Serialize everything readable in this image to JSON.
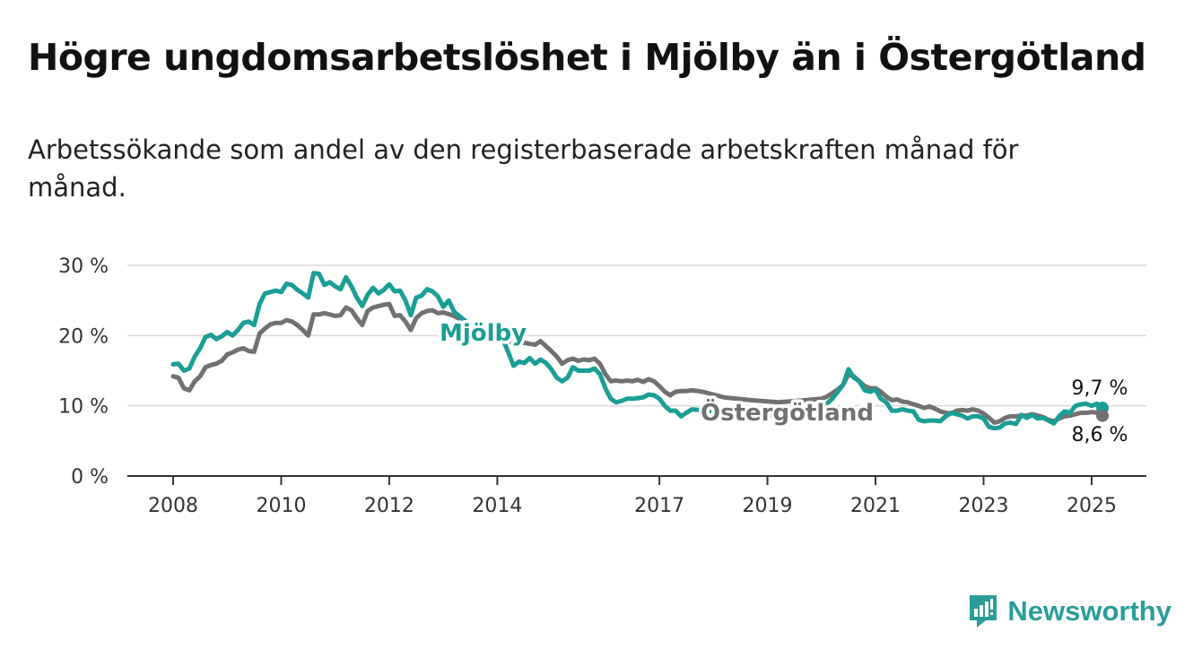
{
  "title": "Högre ungdomsarbetslöshet i Mjölby än i Östergötland",
  "subtitle": "Arbetssökande som andel av den registerbaserade arbetskraften månad för månad.",
  "logo": {
    "text": "Newsworthy",
    "icon": "newsworthy-logo-icon"
  },
  "colors": {
    "mjolby": "#1a9e95",
    "ostergotland": "#717171",
    "grid": "#d9d9d9",
    "axis": "#333333"
  },
  "chart_data": {
    "type": "line",
    "title": "Högre ungdomsarbetslöshet i Mjölby än i Östergötland",
    "subtitle": "Arbetssökande som andel av den registerbaserade arbetskraften månad för månad.",
    "y_ticks": [
      "0 %",
      "10 %",
      "20 %",
      "30 %"
    ],
    "ylim": [
      0,
      30
    ],
    "x_ticks": [
      "2008",
      "2010",
      "2012",
      "2014",
      "2017",
      "2019",
      "2021",
      "2023",
      "2025"
    ],
    "xlim": [
      2008,
      2025.2
    ],
    "grid": "horizontal",
    "series": [
      {
        "name": "Mjölby",
        "end_label": "9,7 %",
        "points": [
          [
            2008.0,
            15.9
          ],
          [
            2008.1,
            16.0
          ],
          [
            2008.2,
            15.0
          ],
          [
            2008.3,
            15.3
          ],
          [
            2008.4,
            17.0
          ],
          [
            2008.5,
            18.2
          ],
          [
            2008.6,
            19.8
          ],
          [
            2008.7,
            20.1
          ],
          [
            2008.8,
            19.5
          ],
          [
            2008.9,
            19.9
          ],
          [
            2009.0,
            20.5
          ],
          [
            2009.1,
            20.0
          ],
          [
            2009.2,
            20.8
          ],
          [
            2009.3,
            21.8
          ],
          [
            2009.4,
            22.0
          ],
          [
            2009.5,
            21.5
          ],
          [
            2009.6,
            24.5
          ],
          [
            2009.7,
            26.0
          ],
          [
            2009.8,
            26.2
          ],
          [
            2009.9,
            26.4
          ],
          [
            2010.0,
            26.2
          ],
          [
            2010.1,
            27.4
          ],
          [
            2010.2,
            27.2
          ],
          [
            2010.3,
            26.5
          ],
          [
            2010.4,
            26.0
          ],
          [
            2010.5,
            25.4
          ],
          [
            2010.6,
            28.9
          ],
          [
            2010.7,
            28.8
          ],
          [
            2010.8,
            27.2
          ],
          [
            2010.9,
            27.6
          ],
          [
            2011.0,
            27.0
          ],
          [
            2011.1,
            26.6
          ],
          [
            2011.2,
            28.3
          ],
          [
            2011.3,
            27.0
          ],
          [
            2011.4,
            25.4
          ],
          [
            2011.5,
            24.2
          ],
          [
            2011.6,
            25.8
          ],
          [
            2011.7,
            26.8
          ],
          [
            2011.8,
            26.0
          ],
          [
            2011.9,
            26.5
          ],
          [
            2012.0,
            27.3
          ],
          [
            2012.1,
            26.3
          ],
          [
            2012.2,
            26.4
          ],
          [
            2012.3,
            25.0
          ],
          [
            2012.4,
            22.9
          ],
          [
            2012.5,
            25.4
          ],
          [
            2012.6,
            25.7
          ],
          [
            2012.7,
            26.6
          ],
          [
            2012.8,
            26.3
          ],
          [
            2012.9,
            25.6
          ],
          [
            2013.0,
            24.1
          ],
          [
            2013.1,
            25.0
          ],
          [
            2013.2,
            23.4
          ],
          [
            2013.5,
            21.5
          ],
          [
            2013.8,
            20.5
          ],
          [
            2014.0,
            20.0
          ],
          [
            2014.1,
            19.5
          ],
          [
            2014.2,
            17.7
          ],
          [
            2014.3,
            15.7
          ],
          [
            2014.4,
            16.3
          ],
          [
            2014.5,
            16.1
          ],
          [
            2014.6,
            16.8
          ],
          [
            2014.7,
            16.0
          ],
          [
            2014.8,
            16.6
          ],
          [
            2014.9,
            16.1
          ],
          [
            2015.0,
            15.2
          ],
          [
            2015.1,
            14.0
          ],
          [
            2015.2,
            13.5
          ],
          [
            2015.3,
            14.0
          ],
          [
            2015.4,
            15.5
          ],
          [
            2015.5,
            15.0
          ],
          [
            2015.6,
            15.0
          ],
          [
            2015.7,
            15.0
          ],
          [
            2015.8,
            15.3
          ],
          [
            2015.9,
            14.5
          ],
          [
            2016.0,
            12.5
          ],
          [
            2016.1,
            11.0
          ],
          [
            2016.2,
            10.5
          ],
          [
            2016.3,
            10.7
          ],
          [
            2016.4,
            11.0
          ],
          [
            2016.5,
            11.0
          ],
          [
            2016.6,
            11.1
          ],
          [
            2016.7,
            11.2
          ],
          [
            2016.8,
            11.6
          ],
          [
            2016.9,
            11.5
          ],
          [
            2017.0,
            11.0
          ],
          [
            2017.1,
            10.0
          ],
          [
            2017.2,
            9.3
          ],
          [
            2017.3,
            9.3
          ],
          [
            2017.4,
            8.5
          ],
          [
            2017.5,
            9.0
          ],
          [
            2017.6,
            9.5
          ],
          [
            2017.9,
            9.3
          ],
          [
            2018.3,
            9.0
          ],
          [
            2018.8,
            8.7
          ],
          [
            2019.3,
            8.6
          ],
          [
            2019.8,
            9.5
          ],
          [
            2020.0,
            10.0
          ],
          [
            2020.1,
            10.3
          ],
          [
            2020.2,
            11.0
          ],
          [
            2020.3,
            12.0
          ],
          [
            2020.4,
            13.0
          ],
          [
            2020.5,
            15.2
          ],
          [
            2020.6,
            14.0
          ],
          [
            2020.7,
            13.5
          ],
          [
            2020.8,
            12.2
          ],
          [
            2020.9,
            12.0
          ],
          [
            2021.0,
            12.3
          ],
          [
            2021.1,
            11.0
          ],
          [
            2021.2,
            10.5
          ],
          [
            2021.3,
            9.3
          ],
          [
            2021.4,
            9.3
          ],
          [
            2021.5,
            9.5
          ],
          [
            2021.6,
            9.3
          ],
          [
            2021.7,
            9.2
          ],
          [
            2021.8,
            8.0
          ],
          [
            2021.9,
            7.8
          ],
          [
            2022.0,
            7.9
          ],
          [
            2022.1,
            7.9
          ],
          [
            2022.2,
            7.8
          ],
          [
            2022.3,
            8.5
          ],
          [
            2022.4,
            9.0
          ],
          [
            2022.5,
            8.8
          ],
          [
            2022.6,
            8.6
          ],
          [
            2022.7,
            8.2
          ],
          [
            2022.8,
            8.5
          ],
          [
            2022.9,
            8.5
          ],
          [
            2023.0,
            8.2
          ],
          [
            2023.1,
            7.0
          ],
          [
            2023.2,
            6.8
          ],
          [
            2023.3,
            6.9
          ],
          [
            2023.4,
            7.5
          ],
          [
            2023.5,
            7.6
          ],
          [
            2023.6,
            7.4
          ],
          [
            2023.7,
            8.7
          ],
          [
            2023.8,
            8.3
          ],
          [
            2023.9,
            8.7
          ],
          [
            2024.0,
            8.2
          ],
          [
            2024.1,
            8.3
          ],
          [
            2024.2,
            7.9
          ],
          [
            2024.3,
            7.5
          ],
          [
            2024.4,
            8.5
          ],
          [
            2024.5,
            9.2
          ],
          [
            2024.6,
            9.0
          ],
          [
            2024.7,
            10.0
          ],
          [
            2024.8,
            10.2
          ],
          [
            2024.9,
            10.3
          ],
          [
            2025.0,
            10.0
          ],
          [
            2025.1,
            10.3
          ],
          [
            2025.2,
            9.7
          ]
        ]
      },
      {
        "name": "Östergötland",
        "end_label": "8,6 %",
        "points": [
          [
            2008.0,
            14.2
          ],
          [
            2008.1,
            14.0
          ],
          [
            2008.2,
            12.5
          ],
          [
            2008.3,
            12.2
          ],
          [
            2008.4,
            13.5
          ],
          [
            2008.5,
            14.2
          ],
          [
            2008.6,
            15.5
          ],
          [
            2008.7,
            15.8
          ],
          [
            2008.8,
            16.0
          ],
          [
            2008.9,
            16.4
          ],
          [
            2009.0,
            17.3
          ],
          [
            2009.1,
            17.6
          ],
          [
            2009.2,
            18.0
          ],
          [
            2009.3,
            18.2
          ],
          [
            2009.4,
            17.8
          ],
          [
            2009.5,
            17.7
          ],
          [
            2009.6,
            20.3
          ],
          [
            2009.7,
            21.0
          ],
          [
            2009.8,
            21.6
          ],
          [
            2009.9,
            21.8
          ],
          [
            2010.0,
            21.8
          ],
          [
            2010.1,
            22.2
          ],
          [
            2010.2,
            22.0
          ],
          [
            2010.3,
            21.5
          ],
          [
            2010.4,
            20.8
          ],
          [
            2010.5,
            20.0
          ],
          [
            2010.6,
            23.0
          ],
          [
            2010.7,
            23.0
          ],
          [
            2010.8,
            23.2
          ],
          [
            2010.9,
            23.0
          ],
          [
            2011.0,
            22.8
          ],
          [
            2011.1,
            22.9
          ],
          [
            2011.2,
            24.0
          ],
          [
            2011.3,
            23.6
          ],
          [
            2011.4,
            22.5
          ],
          [
            2011.5,
            21.5
          ],
          [
            2011.6,
            23.5
          ],
          [
            2011.7,
            24.0
          ],
          [
            2011.8,
            24.2
          ],
          [
            2011.9,
            24.4
          ],
          [
            2012.0,
            24.5
          ],
          [
            2012.1,
            22.8
          ],
          [
            2012.2,
            22.9
          ],
          [
            2012.3,
            22.0
          ],
          [
            2012.4,
            20.8
          ],
          [
            2012.5,
            22.5
          ],
          [
            2012.6,
            23.2
          ],
          [
            2012.7,
            23.5
          ],
          [
            2012.8,
            23.6
          ],
          [
            2012.9,
            23.2
          ],
          [
            2013.0,
            23.3
          ],
          [
            2013.2,
            22.8
          ],
          [
            2013.5,
            21.5
          ],
          [
            2013.8,
            20.8
          ],
          [
            2014.0,
            20.5
          ],
          [
            2014.1,
            19.8
          ],
          [
            2014.2,
            19.3
          ],
          [
            2014.3,
            19.0
          ],
          [
            2014.4,
            18.7
          ],
          [
            2014.5,
            19.0
          ],
          [
            2014.6,
            18.8
          ],
          [
            2014.7,
            18.7
          ],
          [
            2014.8,
            19.2
          ],
          [
            2014.9,
            18.5
          ],
          [
            2015.0,
            17.8
          ],
          [
            2015.1,
            17.0
          ],
          [
            2015.2,
            16.0
          ],
          [
            2015.3,
            16.5
          ],
          [
            2015.4,
            16.7
          ],
          [
            2015.5,
            16.4
          ],
          [
            2015.6,
            16.6
          ],
          [
            2015.7,
            16.5
          ],
          [
            2015.8,
            16.7
          ],
          [
            2015.9,
            16.0
          ],
          [
            2016.0,
            14.5
          ],
          [
            2016.1,
            13.5
          ],
          [
            2016.2,
            13.6
          ],
          [
            2016.3,
            13.5
          ],
          [
            2016.4,
            13.6
          ],
          [
            2016.5,
            13.5
          ],
          [
            2016.6,
            13.7
          ],
          [
            2016.7,
            13.4
          ],
          [
            2016.8,
            13.8
          ],
          [
            2016.9,
            13.5
          ],
          [
            2017.0,
            12.8
          ],
          [
            2017.1,
            12.0
          ],
          [
            2017.2,
            11.5
          ],
          [
            2017.3,
            12.0
          ],
          [
            2017.4,
            12.1
          ],
          [
            2017.5,
            12.1
          ],
          [
            2017.6,
            12.2
          ],
          [
            2017.8,
            12.0
          ],
          [
            2018.2,
            11.2
          ],
          [
            2018.7,
            10.8
          ],
          [
            2019.2,
            10.5
          ],
          [
            2019.7,
            10.8
          ],
          [
            2020.0,
            11.0
          ],
          [
            2020.1,
            11.3
          ],
          [
            2020.2,
            11.8
          ],
          [
            2020.3,
            12.3
          ],
          [
            2020.4,
            13.0
          ],
          [
            2020.5,
            14.5
          ],
          [
            2020.6,
            14.2
          ],
          [
            2020.7,
            13.5
          ],
          [
            2020.8,
            12.8
          ],
          [
            2020.9,
            12.5
          ],
          [
            2021.0,
            12.5
          ],
          [
            2021.1,
            12.0
          ],
          [
            2021.2,
            11.3
          ],
          [
            2021.3,
            10.8
          ],
          [
            2021.4,
            10.9
          ],
          [
            2021.5,
            10.6
          ],
          [
            2021.6,
            10.5
          ],
          [
            2021.7,
            10.2
          ],
          [
            2021.8,
            10.0
          ],
          [
            2021.9,
            9.7
          ],
          [
            2022.0,
            9.9
          ],
          [
            2022.1,
            9.6
          ],
          [
            2022.2,
            9.2
          ],
          [
            2022.3,
            9.0
          ],
          [
            2022.4,
            8.9
          ],
          [
            2022.5,
            9.3
          ],
          [
            2022.6,
            9.4
          ],
          [
            2022.7,
            9.3
          ],
          [
            2022.8,
            9.5
          ],
          [
            2022.9,
            9.3
          ],
          [
            2023.0,
            8.9
          ],
          [
            2023.1,
            8.3
          ],
          [
            2023.2,
            7.6
          ],
          [
            2023.3,
            7.8
          ],
          [
            2023.4,
            8.3
          ],
          [
            2023.5,
            8.5
          ],
          [
            2023.6,
            8.5
          ],
          [
            2023.7,
            8.6
          ],
          [
            2023.8,
            8.6
          ],
          [
            2023.9,
            8.8
          ],
          [
            2024.0,
            8.6
          ],
          [
            2024.1,
            8.4
          ],
          [
            2024.2,
            8.0
          ],
          [
            2024.3,
            7.8
          ],
          [
            2024.4,
            8.2
          ],
          [
            2024.5,
            8.5
          ],
          [
            2024.6,
            8.6
          ],
          [
            2024.7,
            8.8
          ],
          [
            2024.8,
            9.0
          ],
          [
            2024.9,
            9.0
          ],
          [
            2025.0,
            9.1
          ],
          [
            2025.1,
            9.0
          ],
          [
            2025.2,
            8.6
          ]
        ]
      }
    ],
    "line_labels": [
      "Mjölby",
      "Östergötland"
    ]
  }
}
